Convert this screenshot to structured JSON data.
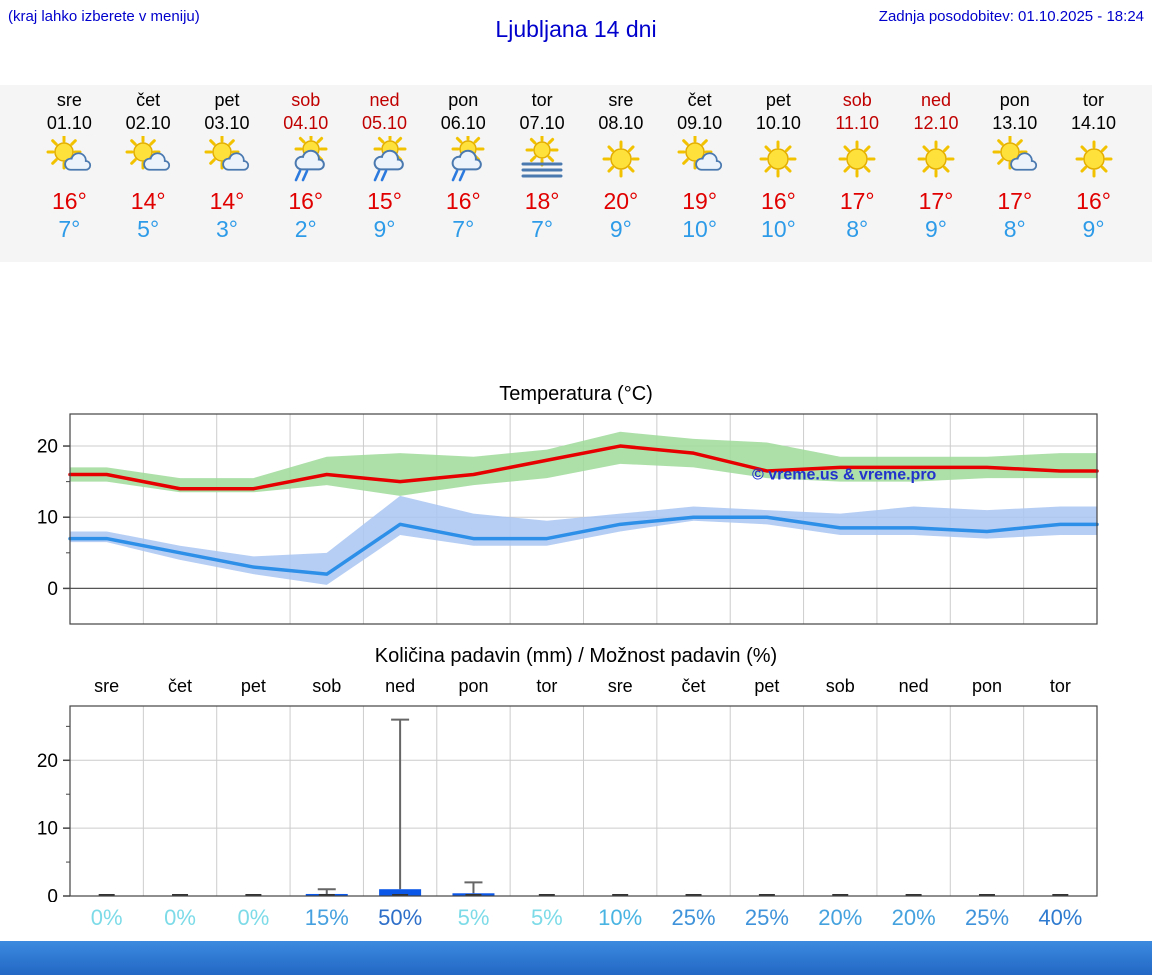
{
  "header": {
    "hint": "(kraj lahko izberete v meniju)",
    "title": "Ljubljana 14 dni",
    "last_update": "Zadnja posodobitev: 01.10.2025 - 18:24"
  },
  "colors": {
    "link_blue": "#0000cc",
    "weekend_red": "#c00000",
    "high_red": "#e10000",
    "low_blue": "#2e9be8",
    "strip_bg": "#f5f5f5",
    "footer_top": "#3c8ae0",
    "footer_bottom": "#2268c4"
  },
  "forecast": {
    "days": [
      {
        "name": "sre",
        "date": "01.10",
        "weekend": false,
        "icon": "partly-cloudy",
        "high": "16°",
        "low": "7°"
      },
      {
        "name": "čet",
        "date": "02.10",
        "weekend": false,
        "icon": "partly-cloudy",
        "high": "14°",
        "low": "5°"
      },
      {
        "name": "pet",
        "date": "03.10",
        "weekend": false,
        "icon": "partly-cloudy",
        "high": "14°",
        "low": "3°"
      },
      {
        "name": "sob",
        "date": "04.10",
        "weekend": true,
        "icon": "rain-sun",
        "high": "16°",
        "low": "2°"
      },
      {
        "name": "ned",
        "date": "05.10",
        "weekend": true,
        "icon": "rain-sun",
        "high": "15°",
        "low": "9°"
      },
      {
        "name": "pon",
        "date": "06.10",
        "weekend": false,
        "icon": "rain-sun",
        "high": "16°",
        "low": "7°"
      },
      {
        "name": "tor",
        "date": "07.10",
        "weekend": false,
        "icon": "fog-sun",
        "high": "18°",
        "low": "7°"
      },
      {
        "name": "sre",
        "date": "08.10",
        "weekend": false,
        "icon": "sunny",
        "high": "20°",
        "low": "9°"
      },
      {
        "name": "čet",
        "date": "09.10",
        "weekend": false,
        "icon": "partly-cloudy",
        "high": "19°",
        "low": "10°"
      },
      {
        "name": "pet",
        "date": "10.10",
        "weekend": false,
        "icon": "sunny",
        "high": "16°",
        "low": "10°"
      },
      {
        "name": "sob",
        "date": "11.10",
        "weekend": true,
        "icon": "sunny",
        "high": "17°",
        "low": "8°"
      },
      {
        "name": "ned",
        "date": "12.10",
        "weekend": true,
        "icon": "sunny",
        "high": "17°",
        "low": "9°"
      },
      {
        "name": "pon",
        "date": "13.10",
        "weekend": false,
        "icon": "partly-cloudy",
        "high": "17°",
        "low": "8°"
      },
      {
        "name": "tor",
        "date": "14.10",
        "weekend": false,
        "icon": "sunny",
        "high": "16°",
        "low": "9°"
      }
    ]
  },
  "chart_data": [
    {
      "type": "line",
      "title": "Temperatura (°C)",
      "categories": [
        "sre",
        "čet",
        "pet",
        "sob",
        "ned",
        "pon",
        "tor",
        "sre",
        "čet",
        "pet",
        "sob",
        "ned",
        "pon",
        "tor"
      ],
      "ylim": [
        -5,
        24.5
      ],
      "yticks": [
        0,
        10,
        20
      ],
      "grid": true,
      "grid_color": "#cccccc",
      "watermark": "© vreme.us & vreme.pro",
      "watermark_color": "#2233cc",
      "series": [
        {
          "name": "max-temp",
          "color": "#e60000",
          "values": [
            16,
            14,
            14,
            16,
            15,
            16,
            18,
            20,
            19,
            16.5,
            17,
            17,
            17,
            16.5
          ]
        },
        {
          "name": "min-temp",
          "color": "#2d8fe8",
          "values": [
            7,
            5,
            3,
            2,
            9,
            7,
            7,
            9,
            10,
            10,
            8.5,
            8.5,
            8,
            9
          ]
        }
      ],
      "bands": [
        {
          "name": "max-range",
          "color": "#9fdb9a",
          "upper": [
            17,
            15.5,
            15.5,
            18.5,
            19,
            18.5,
            19.5,
            22,
            21,
            20.5,
            18.5,
            18.5,
            18.5,
            19
          ],
          "lower": [
            15,
            13.5,
            13.5,
            14.5,
            13,
            14.5,
            15.5,
            17.5,
            17,
            15.5,
            15,
            15,
            15.5,
            15.5
          ]
        },
        {
          "name": "min-range",
          "color": "#a9c6f2",
          "upper": [
            8,
            6,
            4.5,
            5,
            13,
            10.5,
            9.5,
            10.5,
            11.5,
            11,
            10.5,
            11.5,
            11,
            11.5
          ],
          "lower": [
            6.5,
            4,
            2,
            0.5,
            7.5,
            6,
            6,
            8,
            9.5,
            9,
            7.5,
            7.5,
            7,
            7.5
          ]
        }
      ]
    },
    {
      "type": "bar",
      "title": "Količina padavin (mm) / Možnost padavin (%)",
      "categories": [
        "sre",
        "čet",
        "pet",
        "sob",
        "ned",
        "pon",
        "tor",
        "sre",
        "čet",
        "pet",
        "sob",
        "ned",
        "pon",
        "tor"
      ],
      "ylim": [
        0,
        28
      ],
      "yticks": [
        0,
        10,
        20
      ],
      "grid_color": "#cccccc",
      "bar_color": "#0b57e8",
      "values": [
        0,
        0,
        0,
        0.3,
        1,
        0.4,
        0,
        0,
        0,
        0,
        0,
        0,
        0,
        0
      ],
      "whiskers": [
        0,
        0,
        0,
        1,
        26,
        2,
        0,
        0,
        0,
        0,
        0,
        0,
        0,
        0
      ],
      "probabilities": [
        {
          "label": "0%",
          "color": "#7ddbe8"
        },
        {
          "label": "0%",
          "color": "#7ddbe8"
        },
        {
          "label": "0%",
          "color": "#7ddbe8"
        },
        {
          "label": "15%",
          "color": "#46a0df"
        },
        {
          "label": "50%",
          "color": "#2e6fc9"
        },
        {
          "label": "5%",
          "color": "#7ddbe8"
        },
        {
          "label": "5%",
          "color": "#7ddbe8"
        },
        {
          "label": "10%",
          "color": "#49b4e2"
        },
        {
          "label": "25%",
          "color": "#3f93da"
        },
        {
          "label": "25%",
          "color": "#3f93da"
        },
        {
          "label": "20%",
          "color": "#45a2de"
        },
        {
          "label": "20%",
          "color": "#45a2de"
        },
        {
          "label": "25%",
          "color": "#3f93da"
        },
        {
          "label": "40%",
          "color": "#2f7bd0"
        }
      ]
    }
  ]
}
